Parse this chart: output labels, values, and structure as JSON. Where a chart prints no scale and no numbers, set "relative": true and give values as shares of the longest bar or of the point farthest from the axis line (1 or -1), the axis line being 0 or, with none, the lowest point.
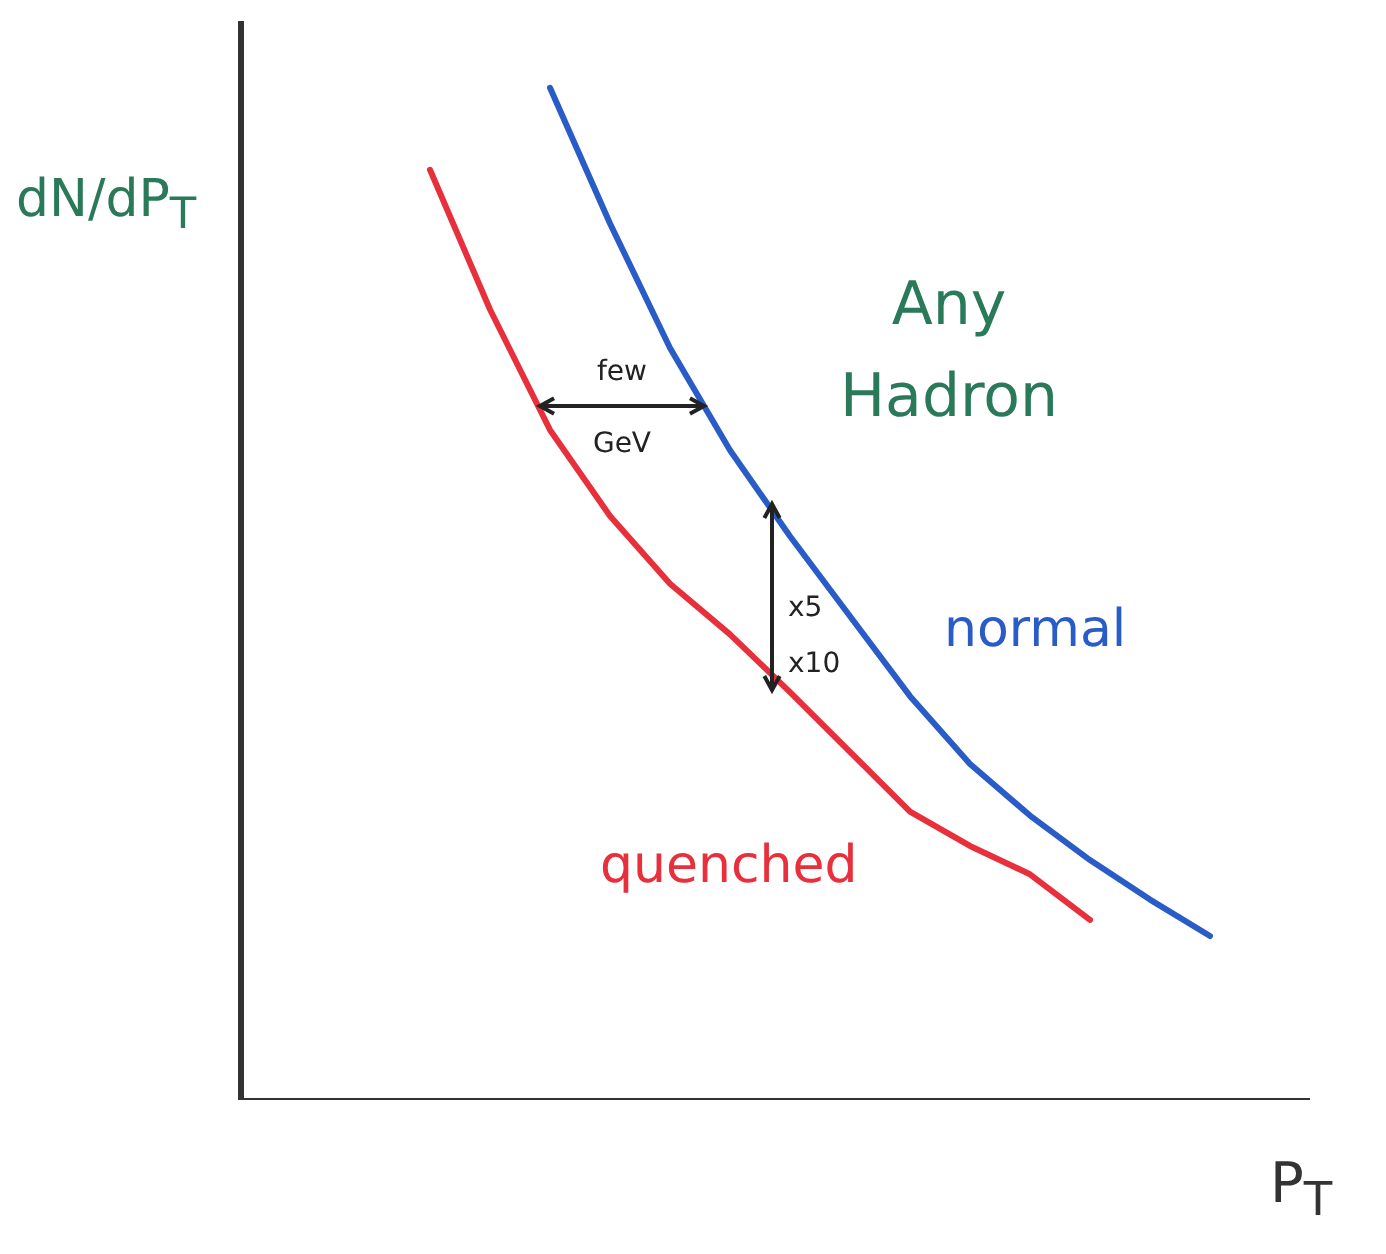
{
  "chart_data": {
    "type": "line",
    "title": "Any\nHadron",
    "xlabel": "P$_{T}$",
    "ylabel": "dN/dP$_{T}$",
    "relative": true,
    "grid": false,
    "marker": "none",
    "line_style": "solid",
    "annotations": [
      "few\nGeV",
      "x5\nx10"
    ],
    "categories": [
      null,
      null,
      null,
      null,
      null,
      null,
      null,
      null,
      null,
      null,
      null,
      null,
      null,
      null
    ],
    "series": [
      {
        "name": "normal",
        "color": "#2a5cc8",
        "values": [
          null,
          null,
          1,
          0.866,
          0.743,
          0.642,
          0.557,
          0.478,
          0.399,
          0.332,
          0.281,
          0.237,
          0.198,
          0.162
        ]
      },
      {
        "name": "quenched",
        "color": "#e8303c",
        "values": [
          0.919,
          0.781,
          0.662,
          0.577,
          0.51,
          0.46,
          0.403,
          0.344,
          0.285,
          0.251,
          0.223,
          0.178,
          null,
          null
        ]
      }
    ]
  }
}
